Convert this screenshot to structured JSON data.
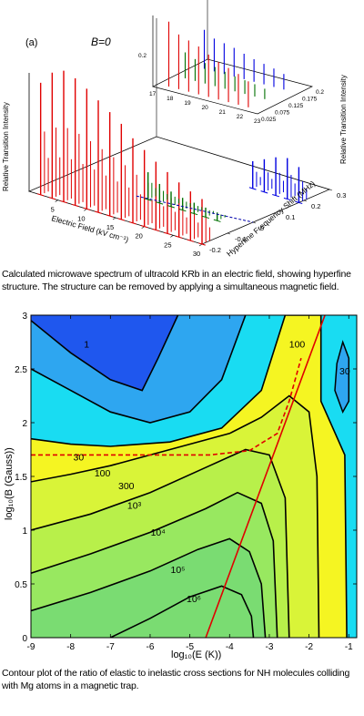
{
  "captions": {
    "a": "Calculated microwave spectrum of ultracold KRb in an electric field, showing hyperfine structure. The structure can be removed by applying a simultaneous magnetic field.",
    "b": "Contour plot of the ratio of elastic to inelastic cross sections for NH molecules colliding with Mg atoms in a magnetic trap."
  },
  "chart_data": [
    {
      "type": "bar",
      "panel_label": "(a)",
      "annotation": "B=0",
      "xlabel": "Electric Field (kV cm⁻¹)",
      "ylabel": "Hyperfine Frequency Shift (MHz)",
      "zlabel": "Relative Transition Intensity",
      "x_ticks": [
        "5",
        "10",
        "15",
        "20",
        "25",
        "30"
      ],
      "y_ticks": [
        "-0.2",
        "-0.1",
        "0",
        "0.1",
        "0.2",
        "0.3"
      ],
      "xlim": [
        0,
        30
      ],
      "ylim": [
        -0.2,
        0.3
      ],
      "series": [
        {
          "color": "#e00000",
          "x": [
            2,
            4,
            6,
            8,
            10,
            12,
            14,
            16,
            18,
            20,
            22,
            24,
            26,
            28,
            30
          ],
          "heights": [
            0.82,
            0.92,
            0.96,
            0.93,
            0.88,
            0.82,
            0.76,
            0.7,
            0.62,
            0.56,
            0.5,
            0.45,
            0.4,
            0.36,
            0.33
          ]
        },
        {
          "color": "#007000",
          "x": [
            14,
            16,
            18,
            20,
            22,
            24,
            26
          ],
          "heights": [
            0.2,
            0.14,
            0.11,
            0.09,
            0.08,
            0.07,
            0.06
          ]
        },
        {
          "color": "#0000e0",
          "x": [
            22,
            24,
            26,
            28,
            30
          ],
          "heights": [
            0.2,
            0.24,
            0.28,
            0.3,
            0.26
          ]
        }
      ],
      "inset": {
        "x_ticks": [
          "17",
          "18",
          "19",
          "20",
          "21",
          "22",
          "23"
        ],
        "y_ticks": [
          "0.025",
          "0.075",
          "0.125",
          "0.175",
          "0.2"
        ],
        "z_ticks": [
          "0.2"
        ]
      }
    },
    {
      "type": "heatmap",
      "xlabel": "log₁₀(E (K))",
      "ylabel": "log₁₀(B (Gauss))",
      "xlim": [
        -9,
        -0.8
      ],
      "ylim": [
        0,
        3
      ],
      "x_ticks": [
        "-9",
        "-8",
        "-7",
        "-6",
        "-5",
        "-4",
        "-3",
        "-2",
        "-1"
      ],
      "y_ticks": [
        "0",
        "0.5",
        "1",
        "1.5",
        "2",
        "2.5",
        "3"
      ],
      "contour_levels": [
        1,
        30,
        100,
        300,
        1000,
        10000,
        100000,
        1000000
      ],
      "contour_labels": [
        {
          "text": "1",
          "x": -7.6,
          "y": 2.7
        },
        {
          "text": "100",
          "x": -2.3,
          "y": 2.7
        },
        {
          "text": "30",
          "x": -1.1,
          "y": 2.45
        },
        {
          "text": "30",
          "x": -7.8,
          "y": 1.65
        },
        {
          "text": "100",
          "x": -7.2,
          "y": 1.5
        },
        {
          "text": "300",
          "x": -6.6,
          "y": 1.38
        },
        {
          "text": "10³",
          "x": -6.4,
          "y": 1.2
        },
        {
          "text": "10⁴",
          "x": -5.8,
          "y": 0.95
        },
        {
          "text": "10⁵",
          "x": -5.3,
          "y": 0.6
        },
        {
          "text": "10⁶",
          "x": -4.9,
          "y": 0.33
        }
      ],
      "fill_colors": [
        "#1f57ee",
        "#2ea6f0",
        "#19dcf2",
        "#f5f522",
        "#d9f438",
        "#b8f04a",
        "#98e860",
        "#7adc72"
      ],
      "red_solid_line": {
        "x": [
          -4.6,
          -1.6
        ],
        "y": [
          0,
          3
        ]
      },
      "red_dashed_line": {
        "x": [
          -9,
          -4.5,
          -3.5,
          -2.8,
          -2.5,
          -2.2
        ],
        "y": [
          1.7,
          1.7,
          1.74,
          1.9,
          2.2,
          2.6
        ]
      }
    }
  ]
}
